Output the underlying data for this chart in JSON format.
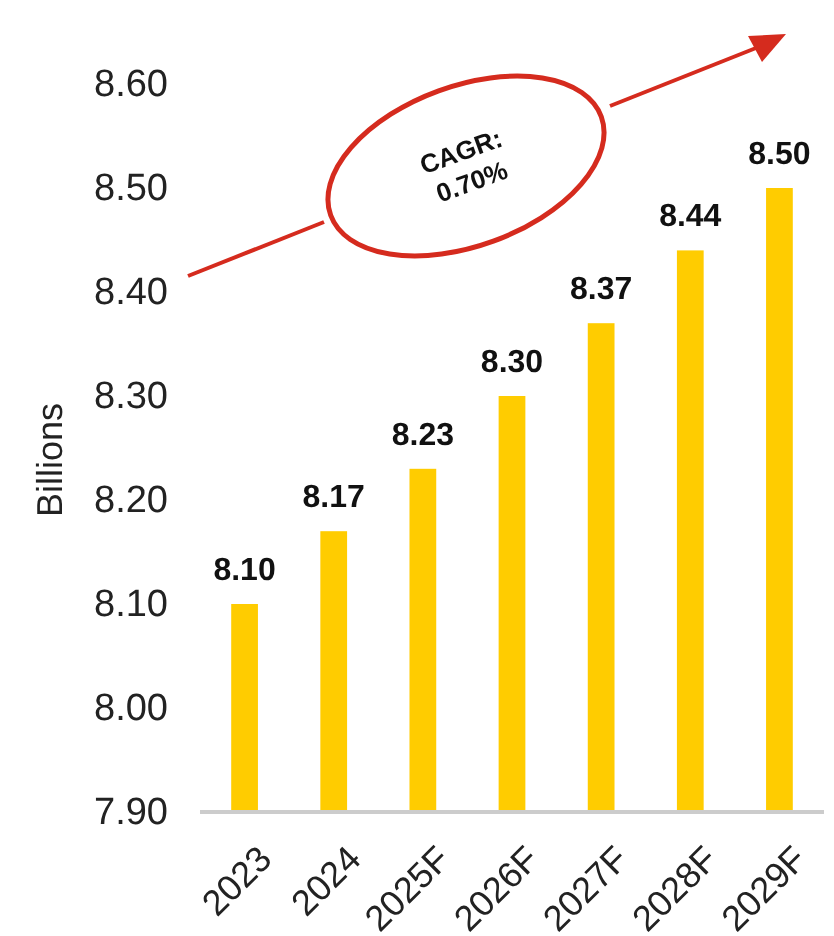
{
  "chart_data": {
    "type": "bar",
    "ylabel": "Billions",
    "categories": [
      "2023",
      "2024",
      "2025F",
      "2026F",
      "2027F",
      "2028F",
      "2029F"
    ],
    "values": [
      8.1,
      8.17,
      8.23,
      8.3,
      8.37,
      8.44,
      8.5
    ],
    "value_labels": [
      "8.10",
      "8.17",
      "8.23",
      "8.30",
      "8.37",
      "8.44",
      "8.50"
    ],
    "color": "#ffcc00",
    "ylim": [
      7.9,
      8.6
    ],
    "yticks": [
      {
        "value": 7.9,
        "label": "7.90"
      },
      {
        "value": 8.0,
        "label": "8.00"
      },
      {
        "value": 8.1,
        "label": "8.10"
      },
      {
        "value": 8.2,
        "label": "8.20"
      },
      {
        "value": 8.3,
        "label": "8.30"
      },
      {
        "value": 8.4,
        "label": "8.40"
      },
      {
        "value": 8.5,
        "label": "8.50"
      },
      {
        "value": 8.6,
        "label": "8.60"
      }
    ],
    "annotations": [
      "CAGR:\n0.70%"
    ]
  }
}
